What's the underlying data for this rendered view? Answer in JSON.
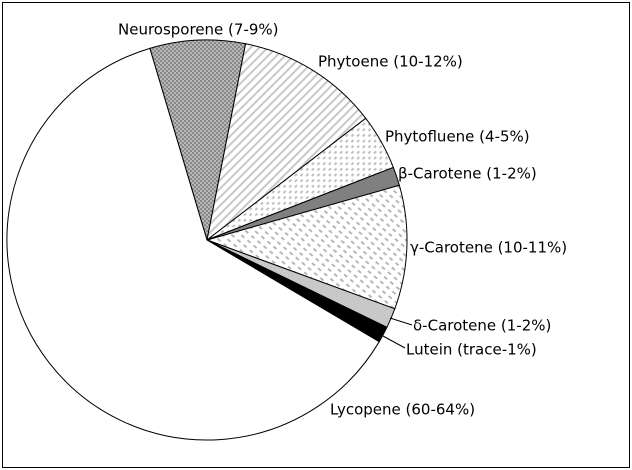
{
  "chart_data": {
    "type": "pie",
    "categories": [
      "Neurosporene (7-9%)",
      "Phytoene (10-12%)",
      "Phytofluene (4-5%)",
      "β-Carotene (1-2%)",
      "γ-Carotene (10-11%)",
      "δ-Carotene (1-2%)",
      "Lutein (trace-1%)",
      "Lycopene (60-64%)"
    ],
    "values": [
      7.7,
      11.5,
      4.5,
      1.5,
      10,
      1.6,
      1.3,
      61.9
    ],
    "colors": [
      "#a8a8a8",
      "#ffffff",
      "#ffffff",
      "#808080",
      "#ffffff",
      "#c8c8c8",
      "#000000",
      "#ffffff"
    ]
  }
}
